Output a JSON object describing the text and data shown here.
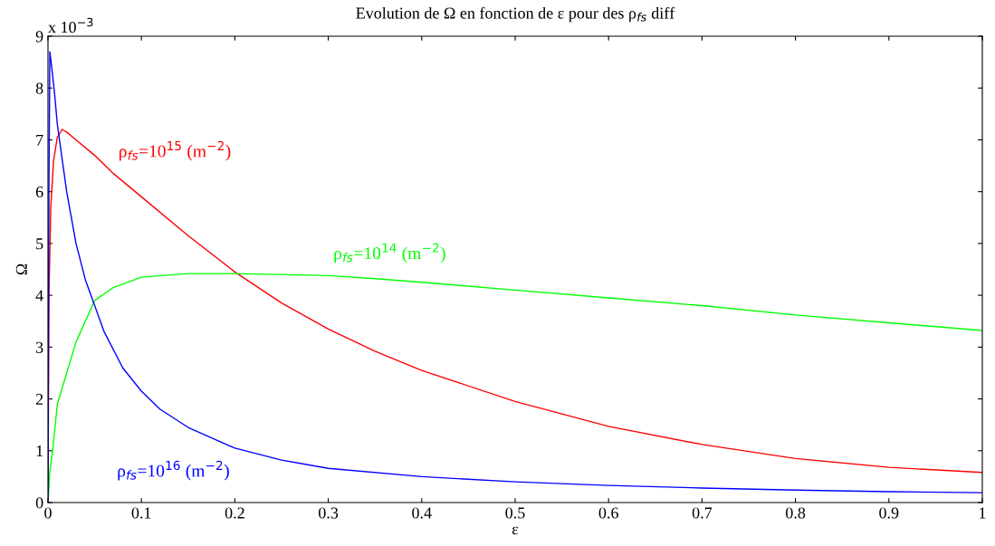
{
  "chart_data": {
    "type": "line",
    "title": "Evolution de Ω en fonction de ε pour des ρ$_{fs}$ diff",
    "xlabel": "ε",
    "ylabel": "Ω",
    "xlim": [
      0,
      1
    ],
    "xticks": [
      0,
      0.1,
      0.2,
      0.3,
      0.4,
      0.5,
      0.6,
      0.7,
      0.8,
      0.9,
      1
    ],
    "ylim": [
      0,
      9
    ],
    "yticks": [
      0,
      1,
      2,
      3,
      4,
      5,
      6,
      7,
      8,
      9
    ],
    "grid": false,
    "legend": false,
    "series": [
      {
        "color": "#ff0000",
        "x": [
          0,
          0.001,
          0.003,
          0.006,
          0.01,
          0.015,
          0.02,
          0.03,
          0.05,
          0.07,
          0.1,
          0.15,
          0.2,
          0.25,
          0.3,
          0.35,
          0.4,
          0.5,
          0.6,
          0.7,
          0.8,
          0.9,
          1
        ],
        "values": [
          0,
          4.0,
          5.7,
          6.6,
          7.05,
          7.2,
          7.15,
          7.0,
          6.7,
          6.35,
          5.9,
          5.15,
          4.45,
          3.85,
          3.35,
          2.92,
          2.55,
          1.95,
          1.47,
          1.12,
          0.85,
          0.68,
          0.58
        ]
      },
      {
        "color": "#00ff00",
        "x": [
          0,
          0.002,
          0.005,
          0.01,
          0.02,
          0.03,
          0.05,
          0.07,
          0.1,
          0.15,
          0.2,
          0.3,
          0.35,
          0.4,
          0.5,
          0.6,
          0.7,
          0.8,
          0.9,
          1
        ],
        "values": [
          0,
          0.6,
          1.0,
          1.9,
          2.5,
          3.1,
          3.9,
          4.15,
          4.35,
          4.42,
          4.42,
          4.38,
          4.32,
          4.25,
          4.1,
          3.95,
          3.8,
          3.62,
          3.47,
          3.32
        ]
      },
      {
        "color": "#0000ff",
        "x": [
          0,
          0.001,
          0.002,
          0.004,
          0.007,
          0.01,
          0.02,
          0.03,
          0.04,
          0.05,
          0.06,
          0.08,
          0.1,
          0.12,
          0.15,
          0.2,
          0.25,
          0.3,
          0.4,
          0.5,
          0.6,
          0.7,
          0.8,
          0.9,
          1
        ],
        "values": [
          0,
          6.0,
          8.7,
          8.4,
          7.9,
          7.3,
          6.0,
          5.0,
          4.3,
          3.8,
          3.3,
          2.6,
          2.15,
          1.8,
          1.45,
          1.05,
          0.82,
          0.66,
          0.5,
          0.4,
          0.33,
          0.28,
          0.24,
          0.21,
          0.19
        ]
      }
    ],
    "annotations": [
      {
        "text": "ρ$_{fs}$=10$^{15}$ (m$^{−2}$)",
        "x": 0.07,
        "y": 6.35
      },
      {
        "text": "ρ$_{fs}$=10$^{14}$ (m$^{−2}$)",
        "x": 0.3,
        "y": 4.38
      },
      {
        "text": "ρ$_{fs}$=10$^{16}$ (m$^{−2}$)",
        "x": 0.2,
        "y": 1.05
      },
      "x 10$^{−3}$"
    ]
  }
}
